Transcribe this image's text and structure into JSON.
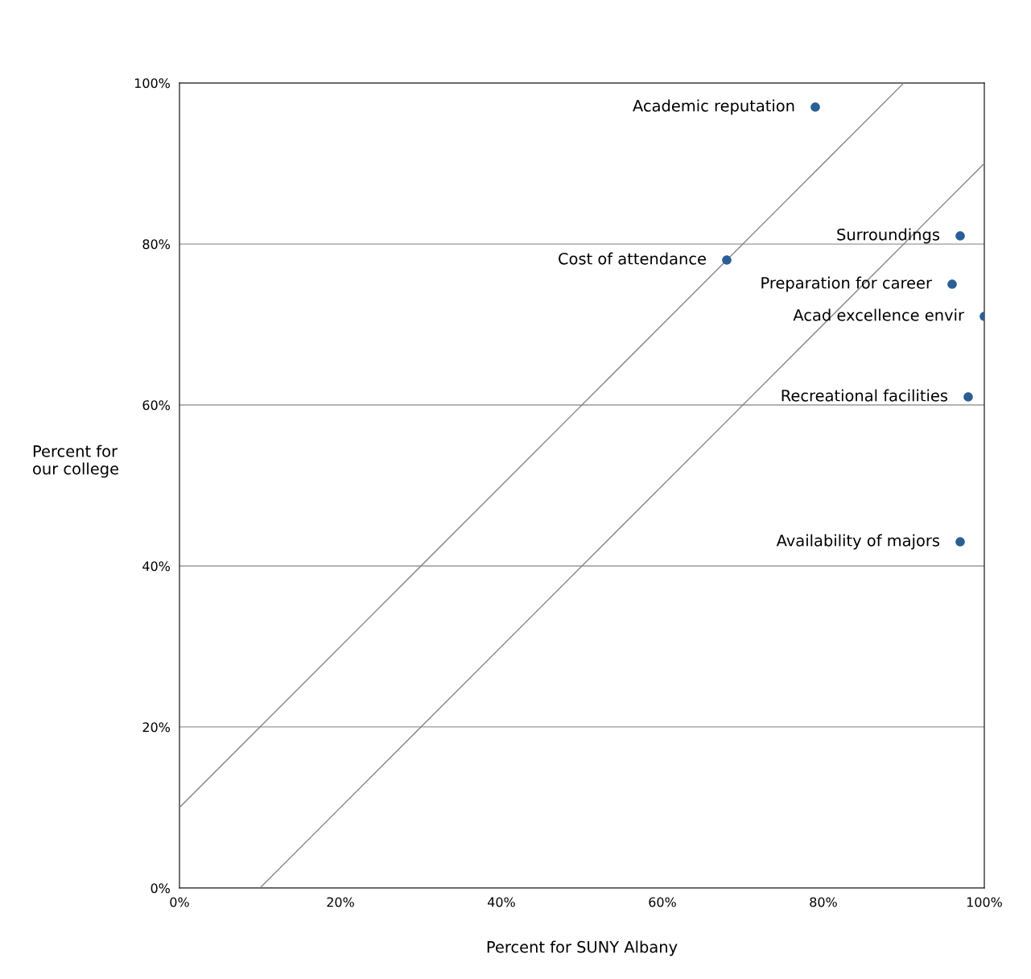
{
  "chart_data": {
    "type": "scatter",
    "xlabel": "Percent for SUNY Albany",
    "ylabel": "Percent for\nour college",
    "series": [
      {
        "color": "#2a5f96",
        "x": [
          79,
          97,
          68,
          96,
          100,
          98,
          97
        ],
        "values": [
          97,
          81,
          78,
          75,
          71,
          61,
          43
        ],
        "marker": "circle"
      },
      {
        "type": "line",
        "color": "#808080",
        "x": [
          0,
          90
        ],
        "values": [
          10,
          100
        ],
        "marker": "none"
      },
      {
        "type": "line",
        "color": "#808080",
        "x": [
          10,
          100
        ],
        "values": [
          0,
          90
        ],
        "marker": "none"
      }
    ],
    "annotations": [
      {
        "text": "Academic reputation",
        "x": 79,
        "y": 97
      },
      {
        "text": "Surroundings",
        "x": 97,
        "y": 81
      },
      {
        "text": "Cost of attendance",
        "x": 68,
        "y": 78
      },
      {
        "text": "Preparation for career",
        "x": 96,
        "y": 75
      },
      {
        "text": "Acad excellence envir",
        "x": 100,
        "y": 71
      },
      {
        "text": "Recreational facilities",
        "x": 98,
        "y": 61
      },
      {
        "text": "Availability of majors",
        "x": 97,
        "y": 43
      }
    ],
    "xlim": [
      0,
      100
    ],
    "ylim": [
      0,
      100
    ],
    "xticks": [
      {
        "value": 0,
        "label": "0%"
      },
      {
        "value": 20,
        "label": "20%"
      },
      {
        "value": 40,
        "label": "40%"
      },
      {
        "value": 60,
        "label": "60%"
      },
      {
        "value": 80,
        "label": "80%"
      },
      {
        "value": 100,
        "label": "100%"
      }
    ],
    "yticks": [
      {
        "value": 0,
        "label": "0%"
      },
      {
        "value": 20,
        "label": "20%"
      },
      {
        "value": 40,
        "label": "40%"
      },
      {
        "value": 60,
        "label": "60%"
      },
      {
        "value": 80,
        "label": "80%"
      },
      {
        "value": 100,
        "label": "100%"
      }
    ],
    "grid": "y",
    "legend": false
  }
}
